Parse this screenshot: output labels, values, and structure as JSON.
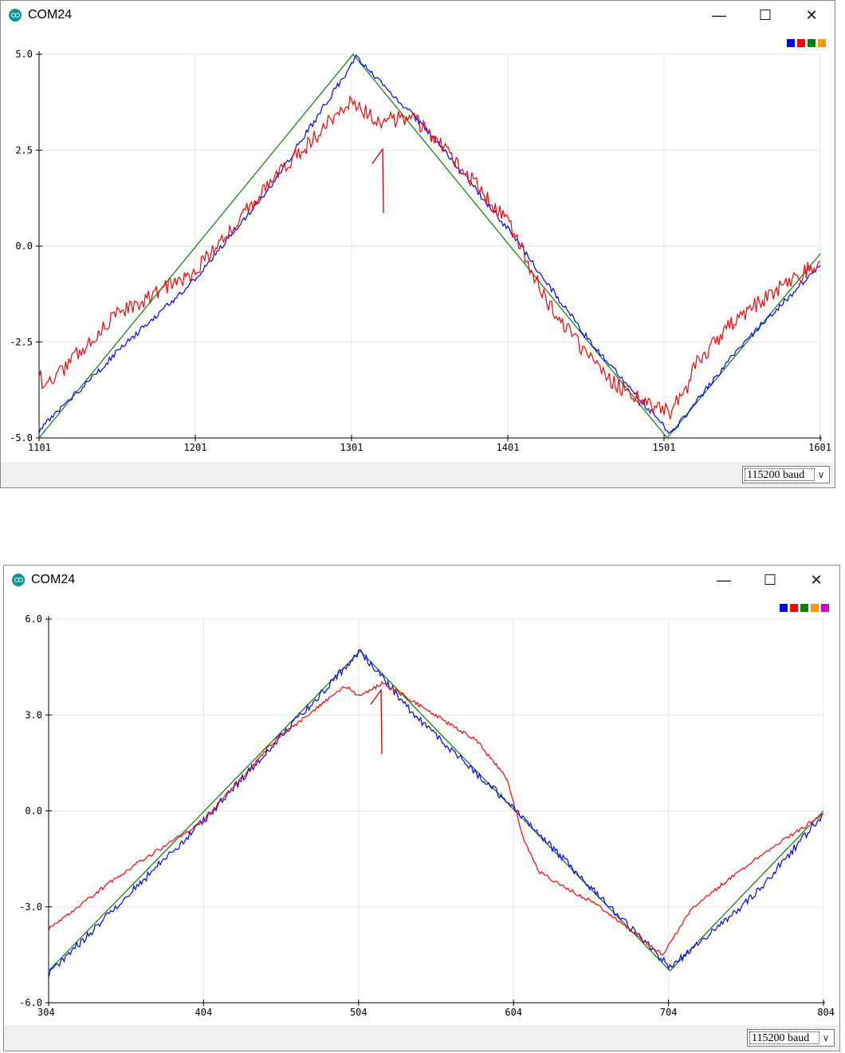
{
  "windows": [
    {
      "title": "COM24",
      "baud": "115200 baud",
      "legend_colors": [
        "#0000ff",
        "#ff0000",
        "#008000",
        "#ff9900"
      ],
      "chart_data": {
        "type": "line",
        "xlim": [
          1101,
          1601
        ],
        "ylim": [
          -5.0,
          5.0
        ],
        "xticks": [
          "1101",
          "1201",
          "1301",
          "1401",
          "1501",
          "1601"
        ],
        "yticks": [
          "5.0",
          "2.5",
          "0.0",
          "-2.5",
          "-5.0"
        ],
        "ytick_values": [
          5.0,
          2.5,
          0.0,
          -2.5,
          -5.0
        ],
        "grid": true,
        "series": [
          {
            "color": "#008000",
            "x": [
              1101,
              1302,
              1503,
              1601
            ],
            "y": [
              -5.0,
              5.0,
              -5.0,
              -0.2
            ],
            "noise": 0
          },
          {
            "color": "#0000ff",
            "x": [
              1101,
              1150,
              1200,
              1250,
              1304,
              1350,
              1400,
              1450,
              1505,
              1550,
              1601
            ],
            "y": [
              -4.8,
              -2.8,
              -0.9,
              1.6,
              4.9,
              3.0,
              0.5,
              -2.3,
              -4.9,
              -2.6,
              -0.5
            ],
            "noise": 0.08
          },
          {
            "color": "#ff0000",
            "x": [
              1101,
              1104,
              1150,
              1200,
              1250,
              1300,
              1318,
              1340,
              1370,
              1400,
              1430,
              1460,
              1490,
              1505,
              1515,
              1520,
              1550,
              1601
            ],
            "y": [
              -3.2,
              -3.7,
              -1.8,
              -0.7,
              1.7,
              3.8,
              3.2,
              3.4,
              2.1,
              0.7,
              -1.7,
              -3.3,
              -4.1,
              -4.3,
              -3.8,
              -3.1,
              -1.8,
              -0.4
            ],
            "noise": 0.22
          }
        ]
      }
    },
    {
      "title": "COM24",
      "baud": "115200 baud",
      "legend_colors": [
        "#0000ff",
        "#ff0000",
        "#008000",
        "#ff9900",
        "#cc00cc"
      ],
      "chart_data": {
        "type": "line",
        "xlim": [
          304,
          804
        ],
        "ylim": [
          -6.0,
          6.0
        ],
        "xticks": [
          "304",
          "404",
          "504",
          "604",
          "704",
          "804"
        ],
        "yticks": [
          "6.0",
          "3.0",
          "0.0",
          "-3.0",
          "-6.0"
        ],
        "ytick_values": [
          6.0,
          3.0,
          0.0,
          -3.0,
          -6.0
        ],
        "grid": true,
        "series": [
          {
            "color": "#008000",
            "x": [
              304,
              505,
              705,
              804
            ],
            "y": [
              -5.0,
              5.0,
              -5.0,
              0.0
            ],
            "noise": 0
          },
          {
            "color": "#0000ff",
            "x": [
              304,
              404,
              505,
              540,
              604,
              650,
              705,
              760,
              804
            ],
            "y": [
              -5.1,
              -0.3,
              5.0,
              3.0,
              0.1,
              -2.2,
              -4.9,
              -2.6,
              -0.1
            ],
            "noise": 0.12
          },
          {
            "color": "#ff0000",
            "x": [
              304,
              350,
              404,
              450,
              495,
              505,
              520,
              580,
              600,
              610,
              620,
              660,
              700,
              720,
              760,
              804
            ],
            "y": [
              -3.7,
              -2.0,
              -0.3,
              2.2,
              3.9,
              3.6,
              4.0,
              2.2,
              1.0,
              -0.8,
              -1.9,
              -3.0,
              -4.5,
              -3.0,
              -1.5,
              -0.1
            ],
            "noise": 0.06
          }
        ]
      }
    }
  ],
  "annotations": [
    {
      "label_glyph": "handwritten-1-mark",
      "color": "#cc0000"
    },
    {
      "label_glyph": "handwritten-1-mark",
      "color": "#cc0000"
    }
  ]
}
